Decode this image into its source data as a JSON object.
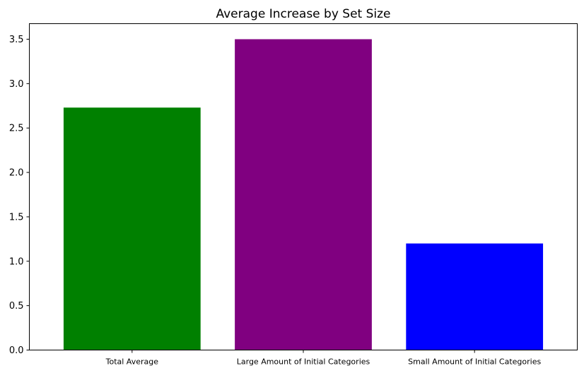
{
  "chart_data": {
    "type": "bar",
    "title": "Average Increase by Set Size",
    "xlabel": "",
    "ylabel": "",
    "categories": [
      "Total Average",
      "Large Amount of Initial Categories",
      "Small Amount of Initial Categories"
    ],
    "values": [
      2.73,
      3.5,
      1.2
    ],
    "colors": [
      "#008000",
      "#800080",
      "#0000ff"
    ],
    "ylim": [
      0,
      3.675
    ],
    "yticks": [
      0.0,
      0.5,
      1.0,
      1.5,
      2.0,
      2.5,
      3.0,
      3.5
    ],
    "ytick_labels": [
      "0.0",
      "0.5",
      "1.0",
      "1.5",
      "2.0",
      "2.5",
      "3.0",
      "3.5"
    ],
    "grid": false,
    "legend": "none"
  }
}
